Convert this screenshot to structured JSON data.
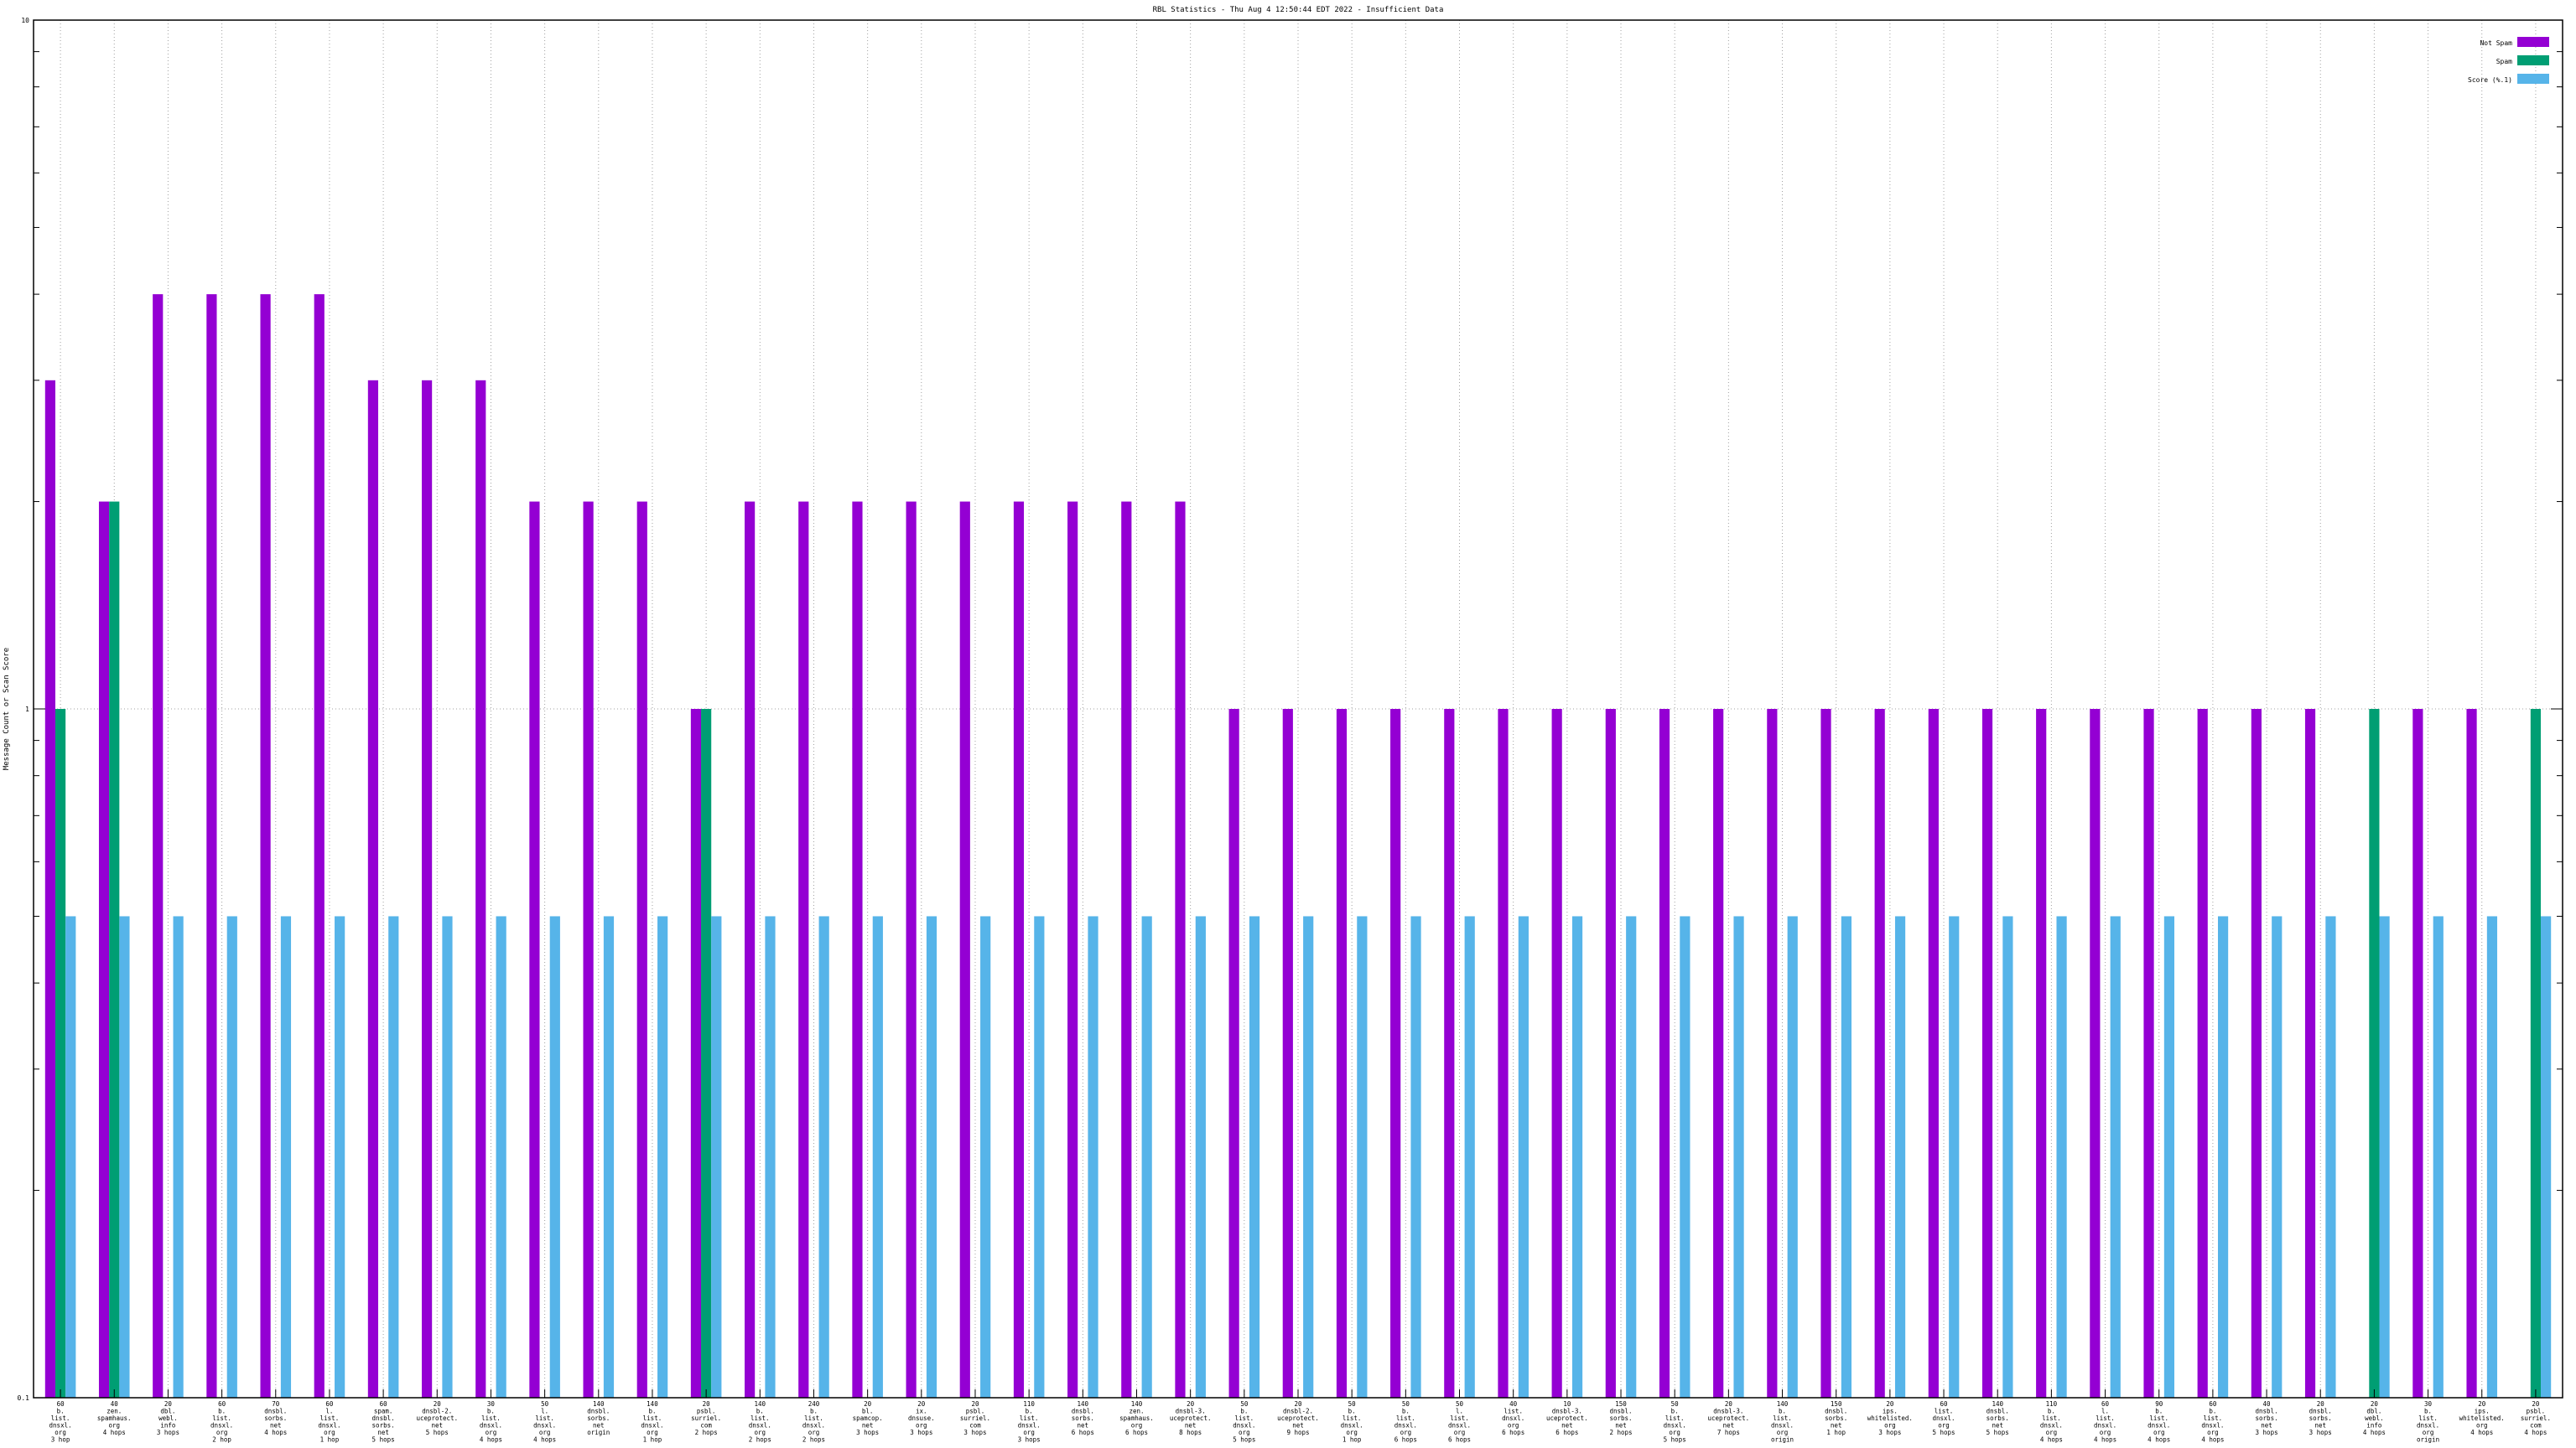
{
  "chart_data": {
    "type": "bar",
    "title": "RBL Statistics - Thu Aug  4 12:50:44 EDT 2022 - Insufficient Data",
    "ylabel": "Message Count or Scan Score",
    "xlabel": "",
    "y_scale": "log",
    "ylim": [
      0.1,
      10
    ],
    "y_tick_labels": [
      "0.1",
      "1",
      "10"
    ],
    "grid": true,
    "legend_position": "top-right",
    "categories": [
      [
        "60",
        "b.",
        "list.",
        "dnsxl.",
        "org",
        "3 hop"
      ],
      [
        "40",
        "zen.",
        "spamhaus.",
        "org",
        "4 hops"
      ],
      [
        "20",
        "dbl.",
        "webl.",
        "info",
        "3 hops"
      ],
      [
        "60",
        "b.",
        "list.",
        "dnsxl.",
        "org",
        "2 hop"
      ],
      [
        "70",
        "dnsbl.",
        "sorbs.",
        "net",
        "4 hops"
      ],
      [
        "60",
        "l.",
        "list.",
        "dnsxl.",
        "org",
        "1 hop"
      ],
      [
        "60",
        "spam.",
        "dnsbl.",
        "sorbs.",
        "net",
        "5 hops"
      ],
      [
        "20",
        "dnsbl-2.",
        "uceprotect.",
        "net",
        "5 hops"
      ],
      [
        "30",
        "b.",
        "list.",
        "dnsxl.",
        "org",
        "4 hops"
      ],
      [
        "50",
        "l.",
        "list.",
        "dnsxl.",
        "org",
        "4 hops"
      ],
      [
        "140",
        "dnsbl.",
        "sorbs.",
        "net",
        "origin"
      ],
      [
        "140",
        "b.",
        "list.",
        "dnsxl.",
        "org",
        "1 hop"
      ],
      [
        "20",
        "psbl.",
        "surriel.",
        "com",
        "2 hops"
      ],
      [
        "140",
        "b.",
        "list.",
        "dnsxl.",
        "org",
        "2 hops"
      ],
      [
        "240",
        "b.",
        "list.",
        "dnsxl.",
        "org",
        "2 hops"
      ],
      [
        "20",
        "bl.",
        "spamcop.",
        "net",
        "3 hops"
      ],
      [
        "20",
        "ix.",
        "dnsuse.",
        "org",
        "3 hops"
      ],
      [
        "20",
        "psbl.",
        "surriel.",
        "com",
        "3 hops"
      ],
      [
        "110",
        "b.",
        "list.",
        "dnsxl.",
        "org",
        "3 hops"
      ],
      [
        "140",
        "dnsbl.",
        "sorbs.",
        "net",
        "6 hops"
      ],
      [
        "140",
        "zen.",
        "spamhaus.",
        "org",
        "6 hops"
      ],
      [
        "20",
        "dnsbl-3.",
        "uceprotect.",
        "net",
        "8 hops"
      ],
      [
        "50",
        "b.",
        "list.",
        "dnsxl.",
        "org",
        "5 hops"
      ],
      [
        "20",
        "dnsbl-2.",
        "uceprotect.",
        "net",
        "9 hops"
      ],
      [
        "50",
        "b.",
        "list.",
        "dnsxl.",
        "org",
        "1 hop"
      ],
      [
        "50",
        "b.",
        "list.",
        "dnsxl.",
        "org",
        "6 hops"
      ],
      [
        "50",
        "l.",
        "list.",
        "dnsxl.",
        "org",
        "6 hops"
      ],
      [
        "40",
        "list.",
        "dnsxl.",
        "org",
        "6 hops"
      ],
      [
        "10",
        "dnsbl-3.",
        "uceprotect.",
        "net",
        "6 hops"
      ],
      [
        "150",
        "dnsbl.",
        "sorbs.",
        "net",
        "2 hops"
      ],
      [
        "50",
        "b.",
        "list.",
        "dnsxl.",
        "org",
        "5 hops"
      ],
      [
        "20",
        "dnsbl-3.",
        "uceprotect.",
        "net",
        "7 hops"
      ],
      [
        "140",
        "b.",
        "list.",
        "dnsxl.",
        "org",
        "origin"
      ],
      [
        "150",
        "dnsbl.",
        "sorbs.",
        "net",
        "1 hop"
      ],
      [
        "20",
        "ips.",
        "whitelisted.",
        "org",
        "3 hops"
      ],
      [
        "60",
        "list.",
        "dnsxl.",
        "org",
        "5 hops"
      ],
      [
        "140",
        "dnsbl.",
        "sorbs.",
        "net",
        "5 hops"
      ],
      [
        "110",
        "b.",
        "list.",
        "dnsxl.",
        "org",
        "4 hops"
      ],
      [
        "60",
        "l.",
        "list.",
        "dnsxl.",
        "org",
        "4 hops"
      ],
      [
        "90",
        "b.",
        "list.",
        "dnsxl.",
        "org",
        "4 hops"
      ],
      [
        "60",
        "b.",
        "list.",
        "dnsxl.",
        "org",
        "4 hops"
      ],
      [
        "40",
        "dnsbl.",
        "sorbs.",
        "net",
        "3 hops"
      ],
      [
        "20",
        "dnsbl.",
        "sorbs.",
        "net",
        "3 hops"
      ],
      [
        "20",
        "dbl.",
        "webl.",
        "info",
        "4 hops"
      ],
      [
        "30",
        "b.",
        "list.",
        "dnsxl.",
        "org",
        "origin"
      ],
      [
        "20",
        "ips.",
        "whitelisted.",
        "org",
        "4 hops"
      ],
      [
        "20",
        "psbl.",
        "surriel.",
        "com",
        "4 hops"
      ]
    ],
    "series": [
      {
        "name": "Not Spam",
        "color": "#9400d3",
        "values": [
          3,
          2,
          4,
          4,
          4,
          4,
          3,
          3,
          3,
          2,
          2,
          2,
          1,
          2,
          2,
          2,
          2,
          2,
          2,
          2,
          2,
          2,
          1,
          1,
          1,
          1,
          1,
          1,
          1,
          1,
          1,
          1,
          1,
          1,
          1,
          1,
          1,
          1,
          1,
          1,
          1,
          1,
          1,
          0,
          1,
          1,
          0
        ]
      },
      {
        "name": "Spam",
        "color": "#009e73",
        "values": [
          1,
          2,
          0,
          0,
          0,
          0,
          0,
          0,
          0,
          0,
          0,
          0,
          1,
          0,
          0,
          0,
          0,
          0,
          0,
          0,
          0,
          0,
          0,
          0,
          0,
          0,
          0,
          0,
          0,
          0,
          0,
          0,
          0,
          0,
          0,
          0,
          0,
          0,
          0,
          0,
          0,
          0,
          0,
          1,
          0,
          0,
          1
        ]
      },
      {
        "name": "Score (%.1)",
        "color": "#56b4e9",
        "values": [
          0.5,
          0.5,
          0.5,
          0.5,
          0.5,
          0.5,
          0.5,
          0.5,
          0.5,
          0.5,
          0.5,
          0.5,
          0.5,
          0.5,
          0.5,
          0.5,
          0.5,
          0.5,
          0.5,
          0.5,
          0.5,
          0.5,
          0.5,
          0.5,
          0.5,
          0.5,
          0.5,
          0.5,
          0.5,
          0.5,
          0.5,
          0.5,
          0.5,
          0.5,
          0.5,
          0.5,
          0.5,
          0.5,
          0.5,
          0.5,
          0.5,
          0.5,
          0.5,
          0.5,
          0.5,
          0.5,
          0.5
        ]
      }
    ]
  }
}
